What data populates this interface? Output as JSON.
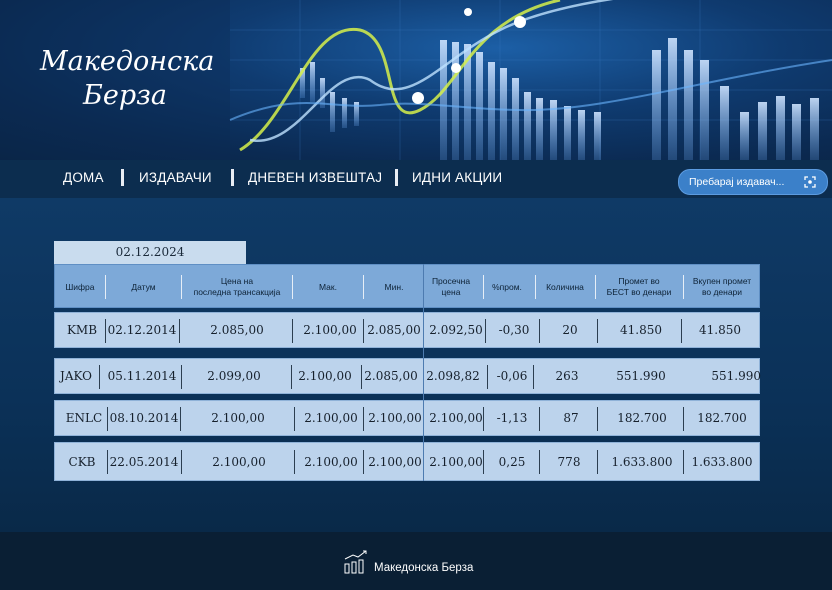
{
  "brand": {
    "line1": "Македонска",
    "line2": "Берза"
  },
  "nav": {
    "items": [
      "ДОМА",
      "ИЗДАВАЧИ",
      "ДНЕВЕН  ИЗВЕШТАЈ",
      "ИДНИ  АКЦИИ"
    ]
  },
  "search": {
    "placeholder": "Пребарај издавач...",
    "icon": "focus-search-icon"
  },
  "date": "02.12.2024",
  "table": {
    "headers": [
      "Шифра",
      "Датум",
      "Цена на\nпоследна трансакција",
      "Мак.",
      "Мин.",
      "Просечна\nцена",
      "%пром.",
      "Количина",
      "Промет во\nБЕСТ во денари",
      "Вкупен промет\nво денари"
    ],
    "rows": [
      [
        "KMB",
        "02.12.2014",
        "2.085,00",
        "2.100,00",
        "2.085,00",
        "2.092,50",
        "-0,30",
        "20",
        "41.850",
        "41.850"
      ],
      [
        "JAKO",
        "05.11.2014",
        "2.099,00",
        "2.100,00",
        "2.085,00",
        "2.098,82",
        "-0,06",
        "263",
        "551.990",
        "551.990"
      ],
      [
        "ENLC",
        "08.10.2014",
        "2.100,00",
        "2.100,00",
        "2.100,00",
        "2.100,00",
        "-1,13",
        "87",
        "182.700",
        "182.700"
      ],
      [
        "CKB",
        "22.05.2014",
        "2.100,00",
        "2.100,00",
        "2.100,00",
        "2.100,00",
        "0,25",
        "778",
        "1.633.800",
        "1.633.800"
      ]
    ]
  },
  "footer": {
    "text": "Македонска Берза",
    "icon": "chart-logo-icon"
  },
  "colors": {
    "accent": "#3b80c9",
    "table_header": "#7da9d8",
    "row_bg": "#bcd3ec",
    "date_tab": "#c9dcee"
  }
}
